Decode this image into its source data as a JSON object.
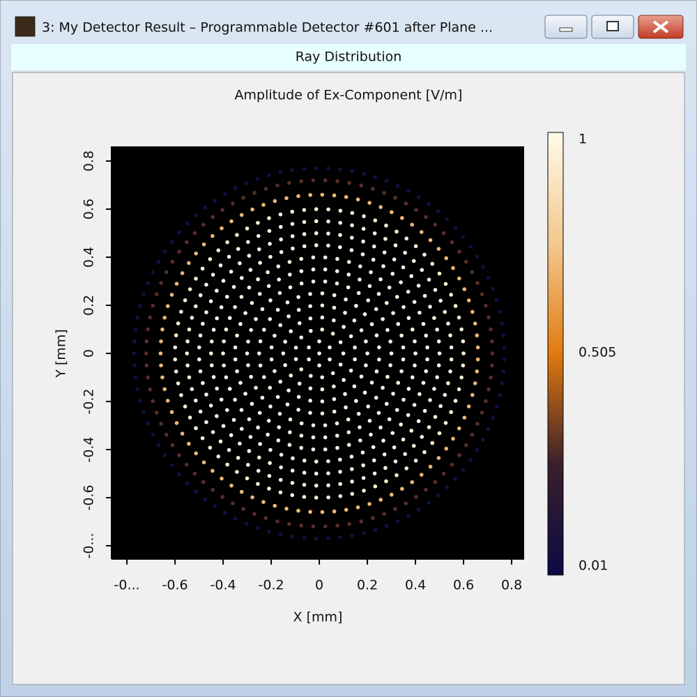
{
  "window": {
    "title": "3: My Detector Result – Programmable Detector #601 after Plane ..."
  },
  "header": {
    "title": "Ray Distribution"
  },
  "chart_data": {
    "type": "scatter",
    "title": "Amplitude of Ex-Component  [V/m]",
    "x_label": "X [mm]",
    "y_label": "Y [mm]",
    "xlim": [
      -0.864,
      0.852
    ],
    "ylim": [
      -0.855,
      0.861
    ],
    "xticks": [
      {
        "value": -0.8,
        "label": "-0..."
      },
      -0.6,
      -0.4,
      -0.2,
      0,
      0.2,
      0.4,
      0.6,
      0.8
    ],
    "yticks": [
      {
        "value": -0.8,
        "label": "-0..."
      },
      -0.6,
      -0.4,
      -0.2,
      0,
      0.2,
      0.4,
      0.6,
      0.8
    ],
    "background": "#000000",
    "rings": {
      "radius": [
        0,
        0.05,
        0.1,
        0.15,
        0.2,
        0.25,
        0.3,
        0.35,
        0.4,
        0.45,
        0.5,
        0.55,
        0.6,
        0.66,
        0.72,
        0.77
      ],
      "values": [
        1,
        1,
        1,
        1,
        1,
        1,
        1,
        1,
        1,
        1,
        1,
        0.98,
        0.95,
        0.7,
        0.3,
        0.06
      ]
    },
    "colorbar": {
      "lim": [
        0.01,
        1
      ],
      "ticks": [
        1,
        0.505,
        0.01
      ],
      "colors": [
        "#0b0b45",
        "#3a1f2a",
        "#e07a10",
        "#f2c890",
        "#fffbe8"
      ]
    }
  }
}
